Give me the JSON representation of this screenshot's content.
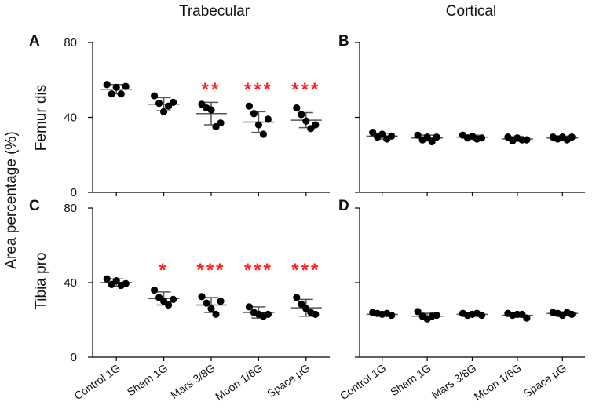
{
  "column_titles": [
    "Trabecular",
    "Cortical"
  ],
  "y_axis_label": "Area percentage (%)",
  "row_labels": [
    "Femur dis",
    "Tibia pro"
  ],
  "panel_letters": [
    "A",
    "B",
    "C",
    "D"
  ],
  "colors": {
    "point": "#000000",
    "bar": "#555555",
    "significance": "#ff2020",
    "axis": "#000000"
  },
  "chart_data": [
    {
      "panel": "A",
      "type": "scatter",
      "tissue": "Trabecular",
      "bone": "Femur dis",
      "categories": [
        "Control 1G",
        "Sham 1G",
        "Mars 3/8G",
        "Moon 1/6G",
        "Space μG"
      ],
      "ylim": [
        0,
        80
      ],
      "yticks": [
        0,
        40,
        80
      ],
      "show_tick_labels": true,
      "points": [
        [
          57.5,
          52.5,
          56,
          52.5,
          56.5
        ],
        [
          51.5,
          47.5,
          43,
          46,
          48
        ],
        [
          47,
          45,
          44,
          35,
          37
        ],
        [
          46,
          42,
          36,
          31,
          39
        ],
        [
          45,
          41.5,
          38,
          34,
          36
        ]
      ],
      "mean": [
        55,
        47,
        42,
        37.5,
        38.5
      ],
      "sd": [
        2.5,
        3.5,
        6,
        5.5,
        4
      ],
      "significance": [
        "",
        "",
        "**",
        "***",
        "***"
      ]
    },
    {
      "panel": "B",
      "type": "scatter",
      "tissue": "Cortical",
      "bone": "Femur dis",
      "categories": [
        "Control 1G",
        "Sham 1G",
        "Mars 3/8G",
        "Moon 1/6G",
        "Space μG"
      ],
      "ylim": [
        0,
        80
      ],
      "yticks": [
        0,
        40,
        80
      ],
      "show_tick_labels": false,
      "points": [
        [
          32,
          29.5,
          31,
          28.5,
          30
        ],
        [
          30.5,
          28,
          29.5,
          27,
          29.5
        ],
        [
          30.5,
          29,
          30,
          28.5,
          29
        ],
        [
          29.5,
          27.5,
          29,
          28,
          28
        ],
        [
          29.5,
          28.5,
          29.5,
          28,
          29.5
        ]
      ],
      "mean": [
        30,
        29,
        29.5,
        28.5,
        29
      ],
      "sd": [
        1.5,
        1.5,
        1,
        1.2,
        1
      ],
      "significance": [
        "",
        "",
        "",
        "",
        ""
      ]
    },
    {
      "panel": "C",
      "type": "scatter",
      "tissue": "Trabecular",
      "bone": "Tibia pro",
      "categories": [
        "Control 1G",
        "Sham 1G",
        "Mars 3/8G",
        "Moon 1/6G",
        "Space μG"
      ],
      "ylim": [
        0,
        80
      ],
      "yticks": [
        0,
        40,
        80
      ],
      "show_tick_labels": true,
      "points": [
        [
          42,
          39,
          41,
          38.5,
          39.5
        ],
        [
          36,
          32,
          30,
          28,
          31
        ],
        [
          32.5,
          29,
          26,
          23,
          30
        ],
        [
          27,
          24,
          23,
          22,
          23
        ],
        [
          32,
          28.5,
          26,
          24,
          23
        ]
      ],
      "mean": [
        40,
        31.5,
        28,
        24,
        26.5
      ],
      "sd": [
        2,
        3.5,
        4,
        3,
        4.5
      ],
      "significance": [
        "",
        "*",
        "***",
        "***",
        "***"
      ]
    },
    {
      "panel": "D",
      "type": "scatter",
      "tissue": "Cortical",
      "bone": "Tibia pro",
      "categories": [
        "Control 1G",
        "Sham 1G",
        "Mars 3/8G",
        "Moon 1/6G",
        "Space μG"
      ],
      "ylim": [
        0,
        80
      ],
      "yticks": [
        0,
        40,
        80
      ],
      "show_tick_labels": false,
      "points": [
        [
          24,
          23.5,
          23,
          23.5,
          22.5
        ],
        [
          24.5,
          22,
          20.5,
          22,
          22.5
        ],
        [
          23.5,
          22.5,
          23,
          23.5,
          22.5
        ],
        [
          23.5,
          22.5,
          23,
          23,
          21
        ],
        [
          24,
          23.5,
          22.5,
          24,
          23
        ]
      ],
      "mean": [
        23,
        22,
        23,
        22.5,
        23.5
      ],
      "sd": [
        0.8,
        1.6,
        0.8,
        1,
        0.8
      ],
      "significance": [
        "",
        "",
        "",
        "",
        ""
      ]
    }
  ]
}
